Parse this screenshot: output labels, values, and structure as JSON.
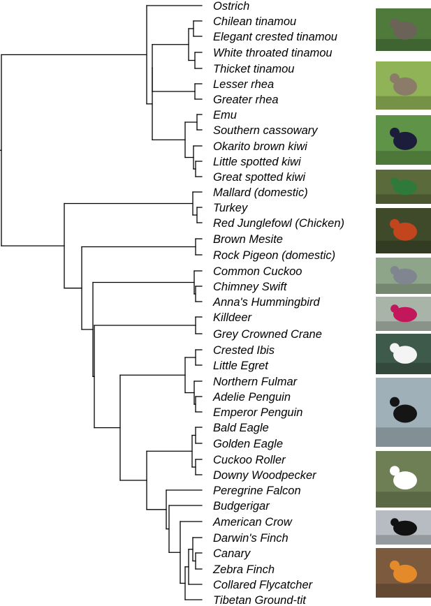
{
  "taxa": [
    "Ostrich",
    "Chilean tinamou",
    "Elegant crested tinamou",
    "White throated tinamou",
    "Thicket tinamou",
    "Lesser rhea",
    "Greater rhea",
    "Emu",
    "Southern cassowary",
    "Okarito brown kiwi",
    "Little spotted kiwi",
    "Great spotted kiwi",
    "Mallard (domestic)",
    "Turkey",
    "Red Junglefowl (Chicken)",
    "Brown Mesite",
    "Rock Pigeon (domestic)",
    "Common Cuckoo",
    "Chimney Swift",
    "Anna's Hummingbird",
    "Killdeer",
    "Grey Crowned Crane",
    "Crested Ibis",
    "Little Egret",
    "Northern Fulmar",
    "Adelie Penguin",
    "Emperor Penguin",
    "Bald Eagle",
    "Golden Eagle",
    "Cuckoo Roller",
    "Downy Woodpecker",
    "Peregrine Falcon",
    "Budgerigar",
    "American Crow",
    "Darwin's Finch",
    "Canary",
    "Zebra Finch",
    "Collared Flycatcher",
    "Tibetan Ground-tit"
  ],
  "photos": [
    {
      "subject": "tinamou",
      "bg": "#4f7a3c",
      "accent": "#6b6258"
    },
    {
      "subject": "rhea",
      "bg": "#8fb356",
      "accent": "#8a7c68"
    },
    {
      "subject": "cassowary",
      "bg": "#5f9347",
      "accent": "#1b1d3a"
    },
    {
      "subject": "mallard",
      "bg": "#5b6a3a",
      "accent": "#2f7a3a"
    },
    {
      "subject": "junglefowl",
      "bg": "#3f4a2a",
      "accent": "#c2451e"
    },
    {
      "subject": "cuckoo",
      "bg": "#8fa58a",
      "accent": "#7f8690"
    },
    {
      "subject": "hummingbird",
      "bg": "#a9b4a8",
      "accent": "#c2185b"
    },
    {
      "subject": "egret",
      "bg": "#3d5a4a",
      "accent": "#f4f4f4"
    },
    {
      "subject": "penguin",
      "bg": "#9fb0b8",
      "accent": "#151515"
    },
    {
      "subject": "woodpecker",
      "bg": "#6f7f55",
      "accent": "#ffffff"
    },
    {
      "subject": "crow",
      "bg": "#b6bcc2",
      "accent": "#111111"
    },
    {
      "subject": "zebra-finch",
      "bg": "#7b5a3e",
      "accent": "#e58a2a"
    }
  ]
}
